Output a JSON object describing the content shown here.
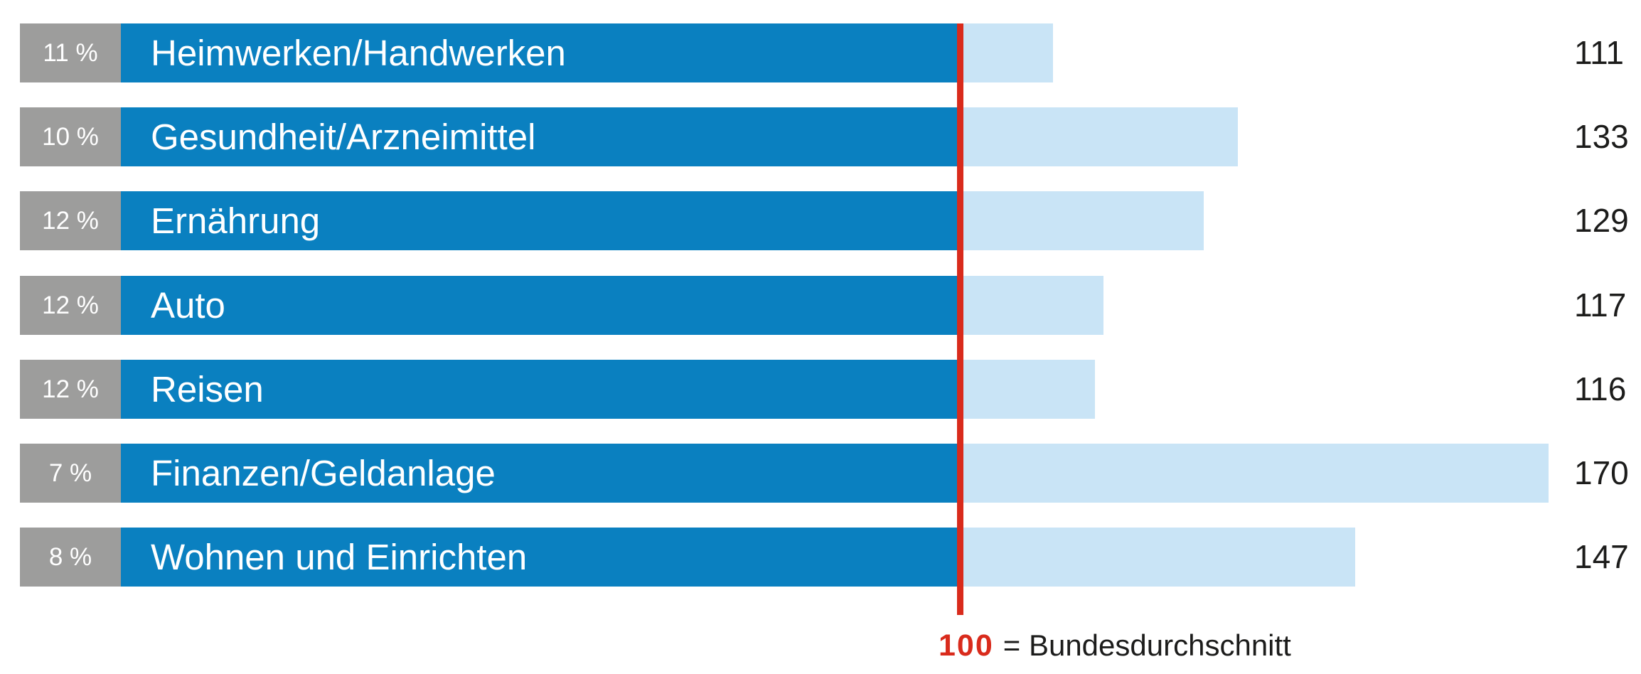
{
  "chart_data": {
    "type": "bar",
    "orientation": "horizontal",
    "description": "Horizontal index bar chart; dark blue segment spans 0-100, light blue segment shows amount above the national average (100), red reference line at 100",
    "categories": [
      "Heimwerken/Handwerken",
      "Gesundheit/Arzneimittel",
      "Ernährung",
      "Auto",
      "Reisen",
      "Finanzen/Geldanlage",
      "Wohnen und Einrichten"
    ],
    "values": [
      111,
      133,
      129,
      117,
      116,
      170,
      147
    ],
    "share_percentages": [
      "11 %",
      "10 %",
      "12 %",
      "12 %",
      "12 %",
      "7 %",
      "8 %"
    ],
    "rows": [
      {
        "share": "11 %",
        "label": "Heimwerken/Handwerken",
        "index": 111
      },
      {
        "share": "10 %",
        "label": "Gesundheit/Arzneimittel",
        "index": 133
      },
      {
        "share": "12 %",
        "label": "Ernährung",
        "index": 129
      },
      {
        "share": "12 %",
        "label": "Auto",
        "index": 117
      },
      {
        "share": "12 %",
        "label": "Reisen",
        "index": 116
      },
      {
        "share": "7 %",
        "label": "Finanzen/Geldanlage",
        "index": 170
      },
      {
        "share": "8 %",
        "label": "Wohnen und Einrichten",
        "index": 147
      }
    ],
    "reference": {
      "value": "100",
      "legend_label": "= Bundesdurchschnitt"
    },
    "axis": {
      "min": 0,
      "reference_value": 100,
      "grid": false
    },
    "legend_position": "bottom-center",
    "colors": {
      "bar_primary": "#0a80c0",
      "bar_overflow": "#c9e4f6",
      "pct_box": "#9d9d9c",
      "reference_line": "#d92b1c",
      "value_text": "#1c1c1b"
    }
  }
}
